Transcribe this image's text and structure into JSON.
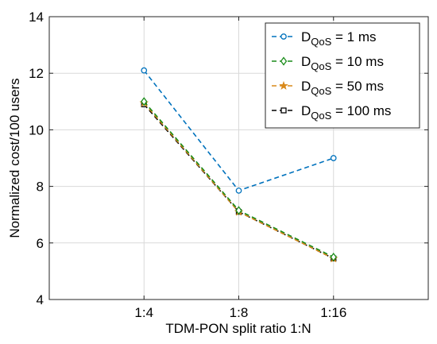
{
  "chart_data": {
    "type": "line",
    "title": "",
    "xlabel": "TDM-PON split ratio 1:N",
    "ylabel": "Normalized cost/100 users",
    "categories": [
      "1:4",
      "1:8",
      "1:16"
    ],
    "x": [
      4,
      8,
      16
    ],
    "x_scale": "log2",
    "ylim": [
      4,
      14
    ],
    "yticks": [
      4,
      6,
      8,
      10,
      12,
      14
    ],
    "ytick_labels": [
      "4",
      "6",
      "8",
      "10",
      "12",
      "14"
    ],
    "grid": true,
    "legend_position": "top-right",
    "series": [
      {
        "name_main": "D",
        "name_sub": "QoS",
        "name_suffix": " = 1 ms",
        "values": [
          12.1,
          7.85,
          9.0
        ],
        "color": "#0072BD",
        "marker": "circle",
        "line": "dashed"
      },
      {
        "name_main": "D",
        "name_sub": "QoS",
        "name_suffix": " = 10 ms",
        "values": [
          11.0,
          7.15,
          5.5
        ],
        "color": "#1A8C1A",
        "marker": "diamond",
        "line": "dashed"
      },
      {
        "name_main": "D",
        "name_sub": "QoS",
        "name_suffix": " = 50 ms",
        "values": [
          10.95,
          7.1,
          5.45
        ],
        "color": "#D9891A",
        "marker": "star",
        "line": "dashed"
      },
      {
        "name_main": "D",
        "name_sub": "QoS",
        "name_suffix": " = 100 ms",
        "values": [
          10.9,
          7.1,
          5.45
        ],
        "color": "#000000",
        "marker": "square",
        "line": "dashed"
      }
    ]
  }
}
